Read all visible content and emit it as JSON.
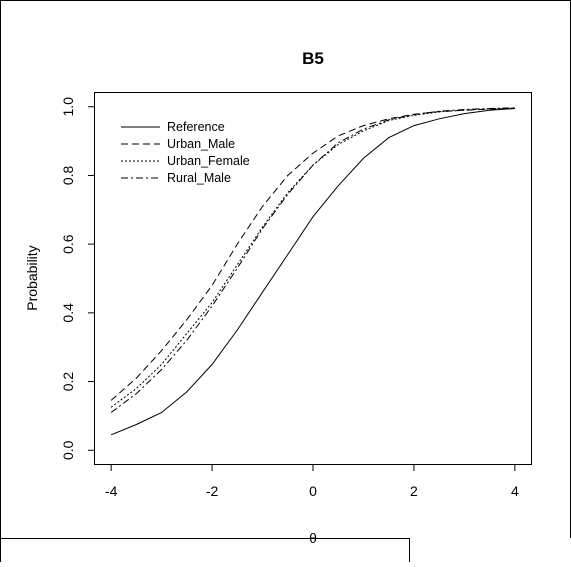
{
  "chart_data": {
    "type": "line",
    "title": "B5",
    "xlabel": "θ",
    "ylabel": "Probability",
    "xlim": [
      -4.32,
      4.32
    ],
    "ylim": [
      -0.04,
      1.04
    ],
    "xticks": [
      "-4",
      "-2",
      "0",
      "2",
      "4"
    ],
    "yticks": [
      "0.0",
      "0.2",
      "0.4",
      "0.6",
      "0.8",
      "1.0"
    ],
    "grid": false,
    "legend_position": "top-left",
    "x": [
      -4,
      -3.5,
      -3,
      -2.5,
      -2,
      -1.5,
      -1,
      -0.5,
      0,
      0.5,
      1,
      1.5,
      2,
      2.5,
      3,
      3.5,
      4
    ],
    "series": [
      {
        "name": "Reference",
        "dash": "",
        "values": [
          0.045,
          0.075,
          0.11,
          0.17,
          0.25,
          0.35,
          0.46,
          0.57,
          0.68,
          0.77,
          0.85,
          0.91,
          0.945,
          0.965,
          0.98,
          0.99,
          0.995
        ]
      },
      {
        "name": "Urban_Male",
        "dash": "7,4",
        "values": [
          0.145,
          0.21,
          0.29,
          0.38,
          0.48,
          0.6,
          0.71,
          0.8,
          0.865,
          0.915,
          0.945,
          0.965,
          0.978,
          0.986,
          0.99,
          0.993,
          0.995
        ]
      },
      {
        "name": "Urban_Female",
        "dash": "2,2",
        "values": [
          0.125,
          0.18,
          0.25,
          0.34,
          0.43,
          0.54,
          0.65,
          0.75,
          0.83,
          0.89,
          0.93,
          0.96,
          0.975,
          0.985,
          0.99,
          0.994,
          0.996
        ]
      },
      {
        "name": "Rural_Male",
        "dash": "7,3,2,3",
        "values": [
          0.11,
          0.165,
          0.235,
          0.32,
          0.42,
          0.53,
          0.645,
          0.745,
          0.83,
          0.895,
          0.935,
          0.962,
          0.977,
          0.987,
          0.992,
          0.995,
          0.997
        ]
      }
    ]
  }
}
